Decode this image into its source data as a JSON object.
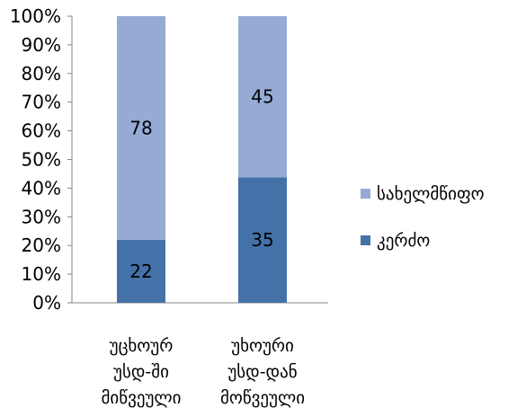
{
  "chart_data": {
    "type": "bar",
    "stacked": "percent",
    "categories": [
      [
        "უცხოურ",
        "უსდ-ში",
        "მიწვეული"
      ],
      [
        "უხოური",
        "უსდ-დან",
        "მოწვეული"
      ]
    ],
    "series": [
      {
        "name": "კერძო",
        "values": [
          22,
          35
        ],
        "color": "#4472A8"
      },
      {
        "name": "სახელმწიფო",
        "values": [
          78,
          45
        ],
        "color": "#95ABD6"
      }
    ],
    "yticks": [
      "0%",
      "10%",
      "20%",
      "30%",
      "40%",
      "50%",
      "60%",
      "70%",
      "80%",
      "90%",
      "100%"
    ],
    "ylim": [
      0,
      100
    ],
    "grid": false,
    "legend_position": "right"
  }
}
